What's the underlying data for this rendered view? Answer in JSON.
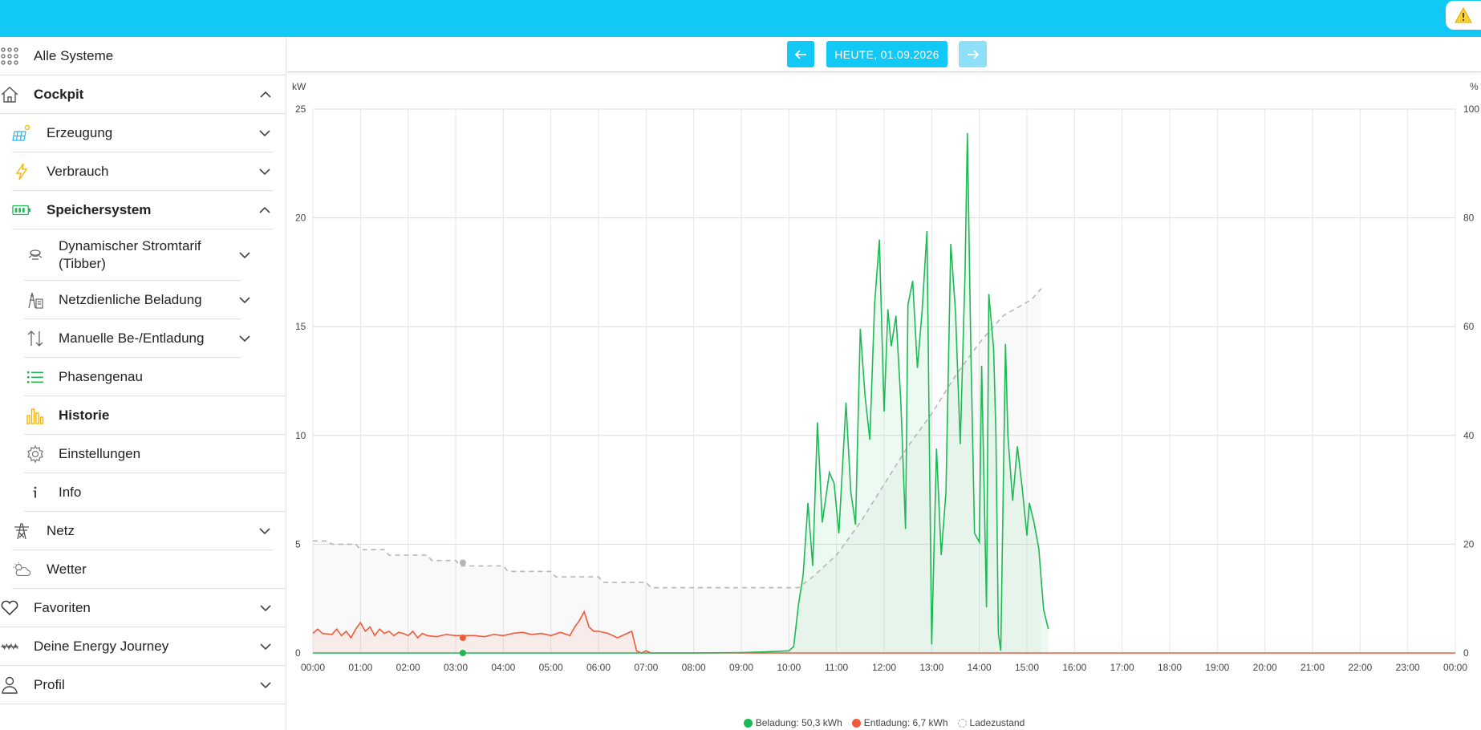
{
  "sidebar": {
    "items": [
      {
        "label": "Alle Systeme"
      },
      {
        "label": "Cockpit"
      },
      {
        "label": "Erzeugung"
      },
      {
        "label": "Verbrauch"
      },
      {
        "label": "Speichersystem"
      },
      {
        "label": "Dynamischer Stromtarif"
      },
      {
        "label": "(Tibber)"
      },
      {
        "label": "Netzdienliche Beladung"
      },
      {
        "label": "Manuelle Be-/Entladung"
      },
      {
        "label": "Phasengenau"
      },
      {
        "label": "Historie"
      },
      {
        "label": "Einstellungen"
      },
      {
        "label": "Info"
      },
      {
        "label": "Netz"
      },
      {
        "label": "Wetter"
      },
      {
        "label": "Favoriten"
      },
      {
        "label": "Deine Energy Journey"
      },
      {
        "label": "Profil"
      }
    ]
  },
  "datebar": {
    "prev_icon": "arrow-left-icon",
    "date_label": "HEUTE, 01.09.2026",
    "next_icon": "arrow-right-icon"
  },
  "colors": {
    "topbar": "#12c8f4",
    "charge": "#1db954",
    "discharge": "#f05a3a",
    "soc": "#b5b5b5"
  },
  "chart_data": {
    "type": "line",
    "y_left_unit": "kW",
    "y_right_unit": "%",
    "y_left_ticks": [
      "0",
      "5",
      "10",
      "15",
      "20",
      "25"
    ],
    "y_right_ticks": [
      "0",
      "20",
      "40",
      "60",
      "80",
      "100"
    ],
    "ylim": [
      0,
      25
    ],
    "y2lim": [
      0,
      100
    ],
    "x_ticks": [
      "00:00",
      "01:00",
      "02:00",
      "03:00",
      "04:00",
      "05:00",
      "06:00",
      "07:00",
      "08:00",
      "09:00",
      "10:00",
      "11:00",
      "12:00",
      "13:00",
      "14:00",
      "15:00",
      "16:00",
      "17:00",
      "18:00",
      "19:00",
      "20:00",
      "21:00",
      "22:00",
      "23:00",
      "00:00"
    ],
    "xlim_hours": [
      0,
      24
    ],
    "legend": [
      {
        "label": "Beladung: 50,3 kWh",
        "color": "#1db954"
      },
      {
        "label": "Entladung: 6,7 kWh",
        "color": "#f05a3a"
      },
      {
        "label": "Ladezustand",
        "color": "#b5b5b5"
      }
    ],
    "series": [
      {
        "name": "Beladung",
        "points": [
          [
            0,
            0
          ],
          [
            6.8,
            0
          ],
          [
            7.0,
            0
          ],
          [
            8,
            0
          ],
          [
            9,
            0.02
          ],
          [
            9.5,
            0.05
          ],
          [
            10,
            0.1
          ],
          [
            10.1,
            0.3
          ],
          [
            10.2,
            2.2
          ],
          [
            10.3,
            3.6
          ],
          [
            10.4,
            6.9
          ],
          [
            10.5,
            4.0
          ],
          [
            10.6,
            10.6
          ],
          [
            10.7,
            6.0
          ],
          [
            10.85,
            8.3
          ],
          [
            10.95,
            7.8
          ],
          [
            11.05,
            5.5
          ],
          [
            11.2,
            11.5
          ],
          [
            11.3,
            7.4
          ],
          [
            11.4,
            5.9
          ],
          [
            11.5,
            14.9
          ],
          [
            11.6,
            11.8
          ],
          [
            11.7,
            9.8
          ],
          [
            11.8,
            16.0
          ],
          [
            11.9,
            19.0
          ],
          [
            12.0,
            11.1
          ],
          [
            12.08,
            15.8
          ],
          [
            12.15,
            14.1
          ],
          [
            12.25,
            15.5
          ],
          [
            12.35,
            11.6
          ],
          [
            12.45,
            5.7
          ],
          [
            12.5,
            16.0
          ],
          [
            12.6,
            17.1
          ],
          [
            12.7,
            13.1
          ],
          [
            12.8,
            15.8
          ],
          [
            12.9,
            19.4
          ],
          [
            13.0,
            0.4
          ],
          [
            13.1,
            9.4
          ],
          [
            13.2,
            4.5
          ],
          [
            13.3,
            7.4
          ],
          [
            13.4,
            18.8
          ],
          [
            13.5,
            15.7
          ],
          [
            13.6,
            9.6
          ],
          [
            13.7,
            17.5
          ],
          [
            13.75,
            23.9
          ],
          [
            13.82,
            14.2
          ],
          [
            13.9,
            5.5
          ],
          [
            14.0,
            5.1
          ],
          [
            14.05,
            13.2
          ],
          [
            14.15,
            2.1
          ],
          [
            14.2,
            16.5
          ],
          [
            14.3,
            14.0
          ],
          [
            14.35,
            10.0
          ],
          [
            14.4,
            0.9
          ],
          [
            14.45,
            0.1
          ],
          [
            14.55,
            14.2
          ],
          [
            14.6,
            10.0
          ],
          [
            14.7,
            7.0
          ],
          [
            14.8,
            9.5
          ],
          [
            14.9,
            7.6
          ],
          [
            15.0,
            5.4
          ],
          [
            15.05,
            6.9
          ],
          [
            15.15,
            6.0
          ],
          [
            15.25,
            4.8
          ],
          [
            15.35,
            2.0
          ],
          [
            15.45,
            1.1
          ]
        ]
      },
      {
        "name": "Entladung",
        "points": [
          [
            0,
            0.9
          ],
          [
            0.1,
            1.1
          ],
          [
            0.2,
            0.9
          ],
          [
            0.4,
            0.85
          ],
          [
            0.5,
            1.1
          ],
          [
            0.6,
            0.8
          ],
          [
            0.7,
            1.0
          ],
          [
            0.8,
            0.7
          ],
          [
            0.9,
            1.1
          ],
          [
            1.0,
            1.4
          ],
          [
            1.1,
            1.0
          ],
          [
            1.2,
            1.2
          ],
          [
            1.3,
            0.8
          ],
          [
            1.4,
            1.1
          ],
          [
            1.5,
            0.9
          ],
          [
            1.6,
            1.0
          ],
          [
            1.7,
            0.8
          ],
          [
            1.8,
            0.95
          ],
          [
            1.9,
            0.9
          ],
          [
            2.0,
            0.8
          ],
          [
            2.1,
            1.0
          ],
          [
            2.2,
            0.7
          ],
          [
            2.3,
            0.9
          ],
          [
            2.4,
            0.8
          ],
          [
            2.6,
            0.75
          ],
          [
            2.8,
            0.85
          ],
          [
            3.0,
            0.8
          ],
          [
            3.2,
            0.8
          ],
          [
            3.4,
            0.8
          ],
          [
            3.6,
            0.75
          ],
          [
            3.8,
            0.85
          ],
          [
            4.0,
            0.8
          ],
          [
            4.2,
            0.9
          ],
          [
            4.4,
            0.95
          ],
          [
            4.6,
            0.85
          ],
          [
            4.8,
            0.9
          ],
          [
            5.0,
            0.8
          ],
          [
            5.2,
            0.95
          ],
          [
            5.4,
            0.8
          ],
          [
            5.5,
            1.2
          ],
          [
            5.6,
            1.5
          ],
          [
            5.7,
            1.9
          ],
          [
            5.8,
            1.2
          ],
          [
            5.9,
            1.0
          ],
          [
            6.0,
            1.0
          ],
          [
            6.2,
            0.9
          ],
          [
            6.4,
            0.7
          ],
          [
            6.6,
            0.9
          ],
          [
            6.7,
            1.0
          ],
          [
            6.8,
            0.1
          ],
          [
            6.9,
            0
          ],
          [
            7.0,
            0.1
          ],
          [
            7.1,
            0
          ],
          [
            24,
            0
          ]
        ]
      },
      {
        "name": "Ladezustand",
        "points": [
          [
            0,
            20.6
          ],
          [
            0.3,
            20.6
          ],
          [
            0.4,
            20
          ],
          [
            0.9,
            20
          ],
          [
            1.0,
            19
          ],
          [
            1.5,
            19
          ],
          [
            1.6,
            18
          ],
          [
            2.4,
            18
          ],
          [
            2.5,
            17
          ],
          [
            3.0,
            17
          ],
          [
            3.1,
            16
          ],
          [
            4.0,
            16
          ],
          [
            4.1,
            15
          ],
          [
            5.0,
            15
          ],
          [
            5.1,
            14
          ],
          [
            6.0,
            14
          ],
          [
            6.1,
            13
          ],
          [
            7.0,
            13
          ],
          [
            7.1,
            12
          ],
          [
            10.2,
            12
          ],
          [
            10.5,
            14
          ],
          [
            11,
            18
          ],
          [
            11.5,
            24
          ],
          [
            12,
            31
          ],
          [
            12.5,
            38
          ],
          [
            13,
            44
          ],
          [
            13.5,
            51
          ],
          [
            14,
            57
          ],
          [
            14.5,
            62
          ],
          [
            14.9,
            64
          ],
          [
            15.1,
            65
          ],
          [
            15.3,
            67
          ]
        ]
      }
    ]
  }
}
